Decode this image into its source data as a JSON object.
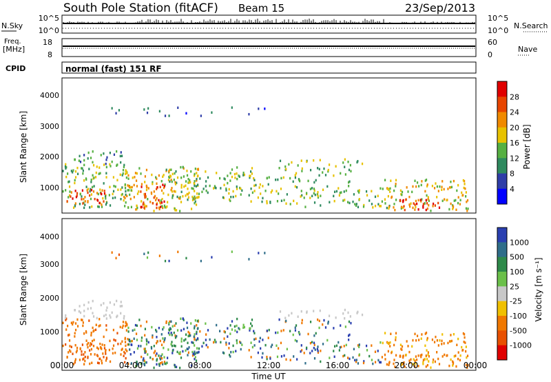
{
  "header": {
    "station": "South Pole Station (fitACF)",
    "beam": "Beam 15",
    "date": "23/Sep/2013"
  },
  "top_panels": {
    "nsky": {
      "left_label": "N.Sky",
      "left_ticks": [
        "10^5",
        "10^0"
      ],
      "right_ticks": [
        "10^5",
        "10^0"
      ],
      "right_label": "N.Search"
    },
    "freq": {
      "left_label_line1": "Freq.",
      "left_label_line2": "[MHz]",
      "left_ticks": [
        "18",
        "8"
      ],
      "right_ticks": [
        "60",
        "0"
      ],
      "right_label": "Nave"
    },
    "cpid": {
      "label": "CPID",
      "mode_text": "normal (fast) 151 RF"
    }
  },
  "chart_data": [
    {
      "type": "heatmap",
      "name": "power",
      "ylabel": "Slant Range [km]",
      "xlabel": "",
      "ylim": [
        200,
        4500
      ],
      "yticks": [
        "1000",
        "2000",
        "3000",
        "4000"
      ],
      "colorbar": {
        "label": "Power [dB]",
        "ticks": [
          "4",
          "8",
          "12",
          "16",
          "20",
          "24",
          "28"
        ],
        "colors": [
          "#0000ff",
          "#2f3ea8",
          "#2f8a5f",
          "#56b042",
          "#e8c200",
          "#f08a00",
          "#e84500",
          "#e00000"
        ]
      }
    },
    {
      "type": "heatmap",
      "name": "velocity",
      "ylabel": "Slant Range [km]",
      "xlabel": "Time UT",
      "ylim": [
        200,
        4500
      ],
      "yticks": [
        "1000",
        "2000",
        "3000",
        "4000"
      ],
      "colorbar": {
        "label": "Velocity [m s⁻¹]",
        "ticks": [
          "1000",
          "500",
          "100",
          "25",
          "-25",
          "-100",
          "-500",
          "-1000"
        ],
        "colors": [
          "#2a3fb0",
          "#2f6e8a",
          "#2e8a4a",
          "#6bc04a",
          "#c8c8c8",
          "#f0c000",
          "#f07800",
          "#e85000",
          "#e00000"
        ]
      },
      "xticks": [
        "00:00",
        "04:00",
        "08:00",
        "12:00",
        "16:00",
        "20:00",
        "00:00"
      ]
    }
  ]
}
